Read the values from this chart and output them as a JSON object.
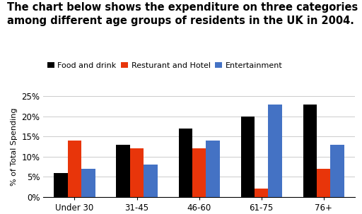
{
  "title_line1": "The chart below shows the expenditure on three categories",
  "title_line2": "among different age groups of residents in the UK in 2004.",
  "categories": [
    "Under 30",
    "31-45",
    "46-60",
    "61-75",
    "76+"
  ],
  "series": [
    {
      "name": "Food and drink",
      "color": "#000000",
      "values": [
        6,
        13,
        17,
        20,
        23
      ]
    },
    {
      "name": "Resturant and Hotel",
      "color": "#E8350A",
      "values": [
        14,
        12,
        12,
        2,
        7
      ]
    },
    {
      "name": "Entertainment",
      "color": "#4472C4",
      "values": [
        7,
        8,
        14,
        23,
        13
      ]
    }
  ],
  "ylabel": "% of Total Spending",
  "ylim": [
    0,
    25
  ],
  "yticks": [
    0,
    5,
    10,
    15,
    20,
    25
  ],
  "ytick_labels": [
    "0%",
    "5%",
    "10%",
    "15%",
    "20%",
    "25%"
  ],
  "background_color": "#ffffff",
  "grid_color": "#cccccc",
  "title_fontsize": 10.5,
  "legend_fontsize": 8.0,
  "axis_fontsize": 8.5,
  "ylabel_fontsize": 8.0,
  "bar_width": 0.22
}
